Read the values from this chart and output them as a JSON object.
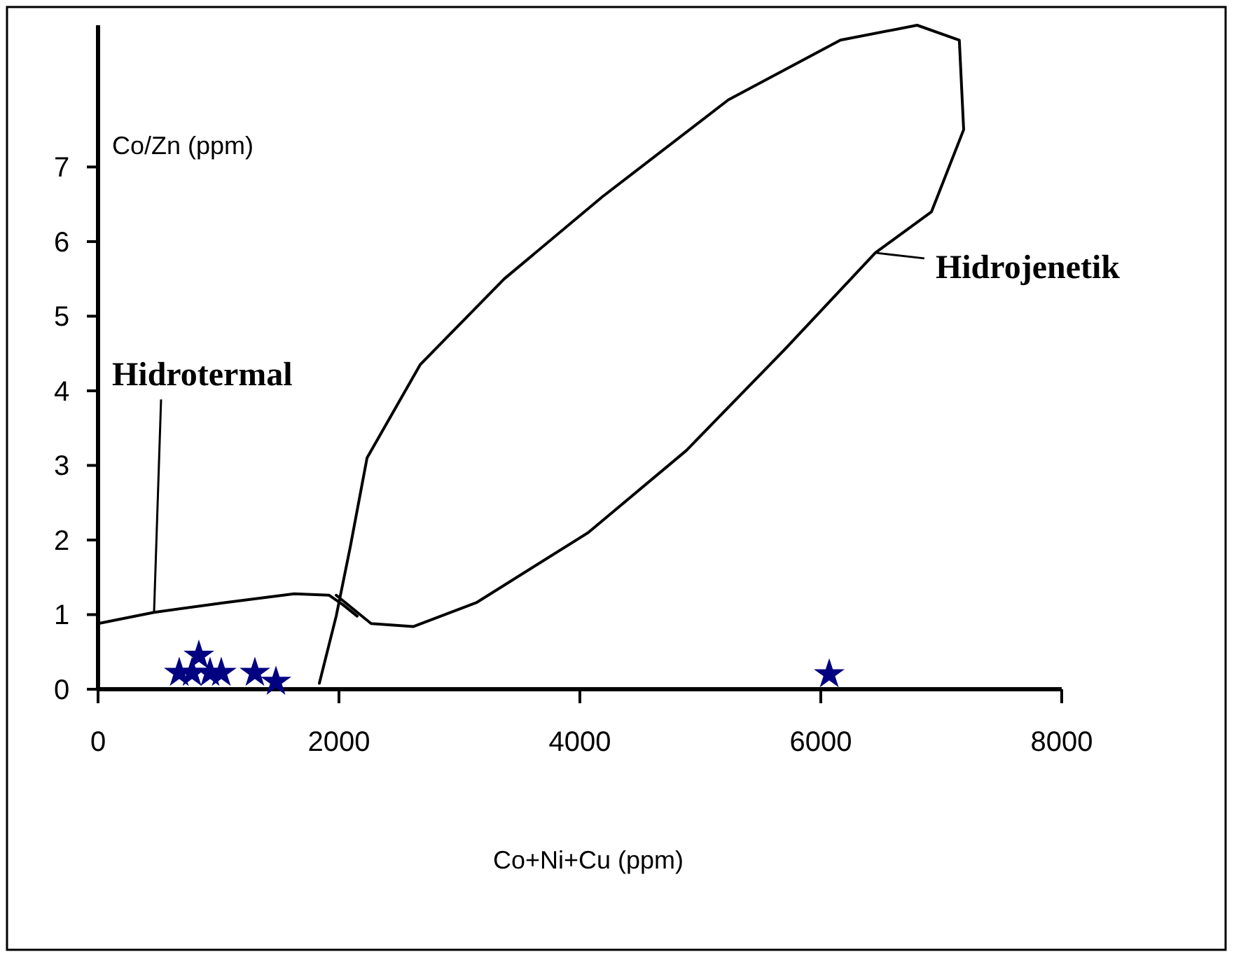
{
  "chart_data": {
    "type": "scatter",
    "xlabel": "Co+Ni+Cu (ppm)",
    "ylabel": "Co/Zn (ppm)",
    "xlim": [
      0,
      8000
    ],
    "ylim": [
      0,
      8.9
    ],
    "xticks": [
      0,
      2000,
      4000,
      6000,
      8000
    ],
    "yticks": [
      0,
      1,
      2,
      3,
      4,
      5,
      6,
      7
    ],
    "marker": "star",
    "annotations": [
      {
        "text": "Hidrotermal",
        "x": 465,
        "y": 1.03
      },
      {
        "text": "Hidrojenetik",
        "x": 6453,
        "y": 5.85
      }
    ],
    "series": [
      {
        "color": "#000080",
        "x": [
          674,
          780,
          837,
          930,
          1023,
          1302,
          1477,
          6070
        ],
        "values": [
          0.22,
          0.22,
          0.45,
          0.22,
          0.22,
          0.22,
          0.1,
          0.2
        ]
      },
      {
        "type": "line",
        "color": "#000000",
        "marker": "none",
        "x": [
          0,
          465,
          1047,
          1628,
          1919,
          2035,
          2151
        ],
        "values": [
          0.88,
          1.03,
          1.16,
          1.28,
          1.26,
          1.13,
          0.98
        ]
      },
      {
        "type": "line",
        "color": "#000000",
        "marker": "none",
        "x": [
          1837,
          1977,
          2093,
          2233,
          2674,
          3372,
          4186,
          5233,
          6163,
          6800,
          7150,
          7186,
          6919,
          6453,
          5698,
          4884,
          4070,
          3140,
          2616,
          2267,
          1977
        ],
        "values": [
          0.08,
          0.98,
          1.9,
          3.1,
          4.35,
          5.5,
          6.6,
          7.9,
          8.7,
          8.9,
          8.7,
          7.5,
          6.4,
          5.85,
          4.55,
          3.2,
          2.1,
          1.16,
          0.84,
          0.88,
          1.26
        ]
      }
    ]
  }
}
